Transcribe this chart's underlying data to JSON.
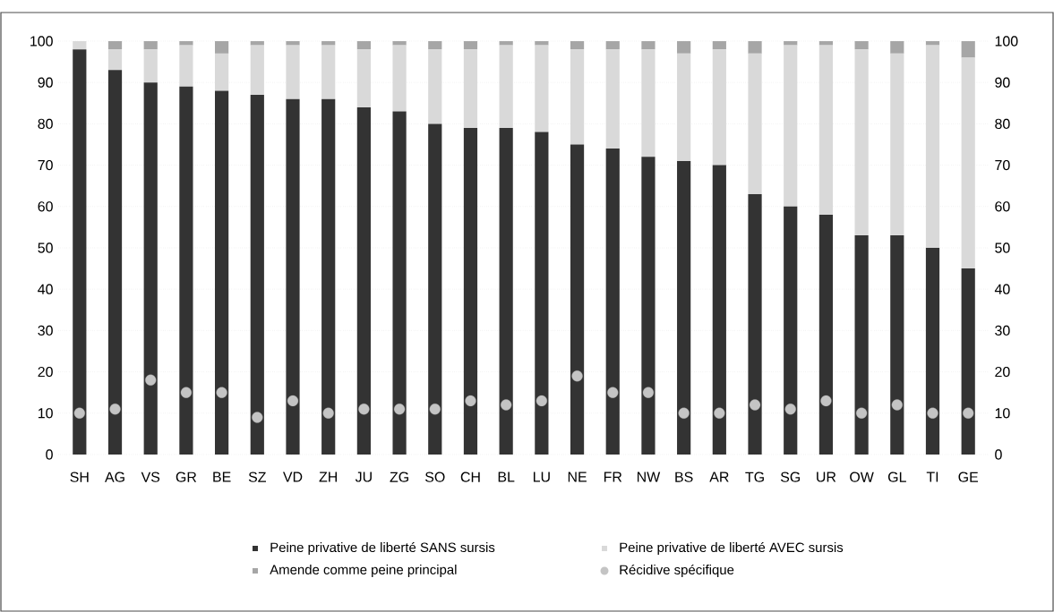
{
  "chart_data": {
    "type": "bar",
    "stacked": true,
    "categories": [
      "SH",
      "AG",
      "VS",
      "GR",
      "BE",
      "SZ",
      "VD",
      "ZH",
      "JU",
      "ZG",
      "SO",
      "CH",
      "BL",
      "LU",
      "NE",
      "FR",
      "NW",
      "BS",
      "AR",
      "TG",
      "SG",
      "UR",
      "OW",
      "GL",
      "TI",
      "GE"
    ],
    "series": [
      {
        "name": "Peine privative de liberté SANS sursis",
        "color": "#333333",
        "values": [
          98,
          93,
          90,
          89,
          88,
          87,
          86,
          86,
          84,
          83,
          80,
          79,
          79,
          78,
          75,
          74,
          72,
          71,
          70,
          63,
          60,
          58,
          53,
          53,
          50,
          45
        ]
      },
      {
        "name": "Peine privative de liberté AVEC sursis",
        "color": "#d9d9d9",
        "values": [
          2,
          5,
          8,
          10,
          9,
          12,
          13,
          13,
          14,
          16,
          18,
          19,
          20,
          21,
          23,
          24,
          26,
          26,
          28,
          34,
          39,
          41,
          45,
          44,
          49,
          51
        ]
      },
      {
        "name": "Amende comme peine principal",
        "color": "#a6a6a6",
        "values": [
          0,
          2,
          2,
          1,
          3,
          1,
          1,
          1,
          2,
          1,
          2,
          2,
          1,
          1,
          2,
          2,
          2,
          3,
          2,
          3,
          1,
          1,
          2,
          3,
          1,
          4
        ]
      },
      {
        "name": "Récidive spécifique",
        "type": "scatter",
        "color": "#c4c4c4",
        "marker": "circle",
        "values": [
          10,
          11,
          18,
          15,
          15,
          9,
          13,
          10,
          11,
          11,
          11,
          13,
          12,
          13,
          19,
          15,
          15,
          10,
          10,
          12,
          11,
          13,
          10,
          12,
          10,
          10
        ]
      }
    ],
    "ylim": [
      0,
      100
    ],
    "yticks": [
      0,
      10,
      20,
      30,
      40,
      50,
      60,
      70,
      80,
      90,
      100
    ],
    "y2lim": [
      0,
      100
    ],
    "y2ticks": [
      0,
      10,
      20,
      30,
      40,
      50,
      60,
      70,
      80,
      90,
      100
    ],
    "grid": "y",
    "legend": "bottom"
  }
}
